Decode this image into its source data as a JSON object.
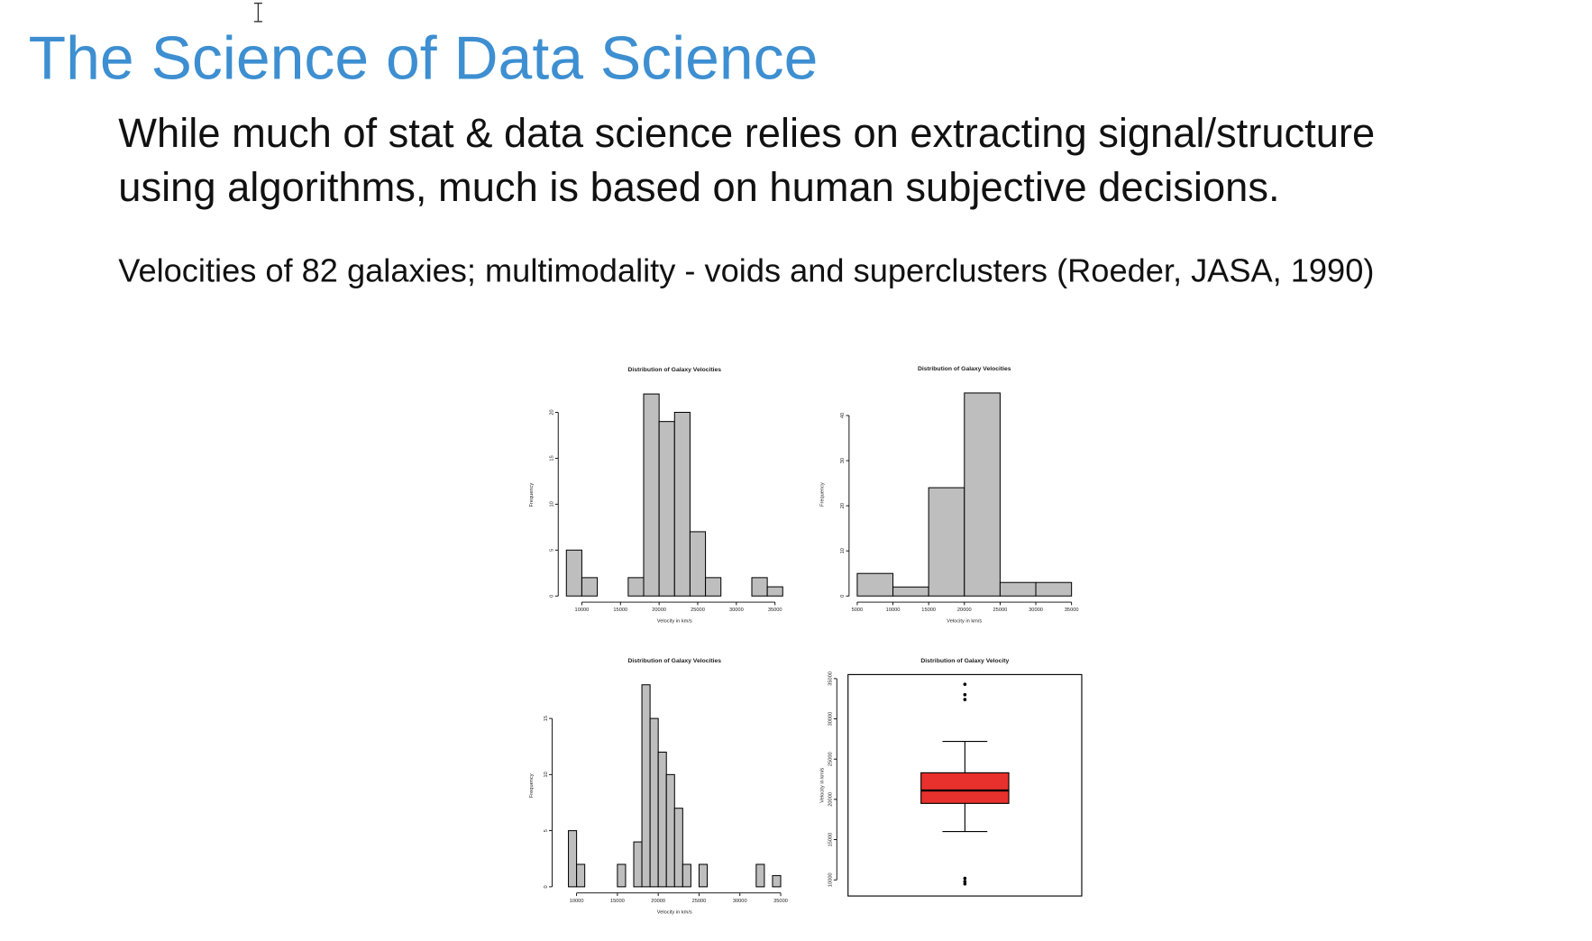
{
  "header": {
    "title": "The Science of Data Science"
  },
  "body": {
    "lines": [
      "While much of stat & data science relies on extracting signal/structure",
      "using algorithms, much is based on human subjective decisions."
    ]
  },
  "caption": "Velocities of 82 galaxies; multimodality - voids and superclusters (Roeder, JASA, 1990)",
  "chart_data": [
    {
      "type": "histogram",
      "title": "Distribution of Galaxy Velocities",
      "xlabel": "Velocity in km/s",
      "ylabel": "Frequency",
      "bins": [
        8000,
        10000,
        12000,
        14000,
        16000,
        18000,
        20000,
        22000,
        24000,
        26000,
        28000,
        30000,
        32000,
        34000,
        36000
      ],
      "counts": [
        5,
        2,
        0,
        0,
        2,
        22,
        19,
        20,
        7,
        2,
        0,
        0,
        2,
        1
      ],
      "xlim": [
        8000,
        36000
      ],
      "ylim": [
        0,
        22
      ],
      "xticks": [
        10000,
        15000,
        20000,
        25000,
        30000,
        35000
      ],
      "yticks": [
        0,
        5,
        10,
        15,
        20
      ],
      "color": "#bebebe"
    },
    {
      "type": "histogram",
      "title": "Distribution of Galaxy Velocities",
      "xlabel": "Velocity in km/s",
      "ylabel": "Frequency",
      "bins": [
        5000,
        10000,
        15000,
        20000,
        25000,
        30000,
        35000
      ],
      "counts": [
        5,
        2,
        24,
        45,
        3,
        3
      ],
      "xlim": [
        5000,
        35000
      ],
      "ylim": [
        0,
        45
      ],
      "xticks": [
        5000,
        10000,
        15000,
        20000,
        25000,
        30000,
        35000
      ],
      "yticks": [
        0,
        10,
        20,
        30,
        40
      ],
      "color": "#bebebe"
    },
    {
      "type": "histogram",
      "title": "Distribution of Galaxy Velocities",
      "xlabel": "Velocity in km/s",
      "ylabel": "Frequency",
      "bins": [
        9000,
        10000,
        11000,
        12000,
        13000,
        14000,
        15000,
        16000,
        17000,
        18000,
        19000,
        20000,
        21000,
        22000,
        23000,
        24000,
        25000,
        26000,
        27000,
        28000,
        29000,
        30000,
        31000,
        32000,
        33000,
        34000,
        35000
      ],
      "counts": [
        5,
        2,
        0,
        0,
        0,
        0,
        2,
        0,
        4,
        18,
        15,
        12,
        10,
        7,
        2,
        0,
        2,
        0,
        0,
        0,
        0,
        0,
        0,
        2,
        0,
        1
      ],
      "xlim": [
        8000,
        36000
      ],
      "ylim": [
        0,
        18
      ],
      "xticks": [
        10000,
        15000,
        20000,
        25000,
        30000,
        35000
      ],
      "yticks": [
        0,
        5,
        10,
        15
      ],
      "color": "#bebebe"
    },
    {
      "type": "box",
      "title": "Distribution of Galaxy Velocity",
      "ylabel": "Velocity in km/s",
      "q1": 19500,
      "median": 21100,
      "q3": 23300,
      "whisker_low": 16000,
      "whisker_high": 27200,
      "outliers": [
        34300,
        33000,
        32400,
        10200,
        9800,
        9500
      ],
      "ylim": [
        8000,
        35500
      ],
      "yticks": [
        10000,
        15000,
        20000,
        25000,
        30000,
        35000
      ],
      "color": "#e8312c"
    }
  ]
}
